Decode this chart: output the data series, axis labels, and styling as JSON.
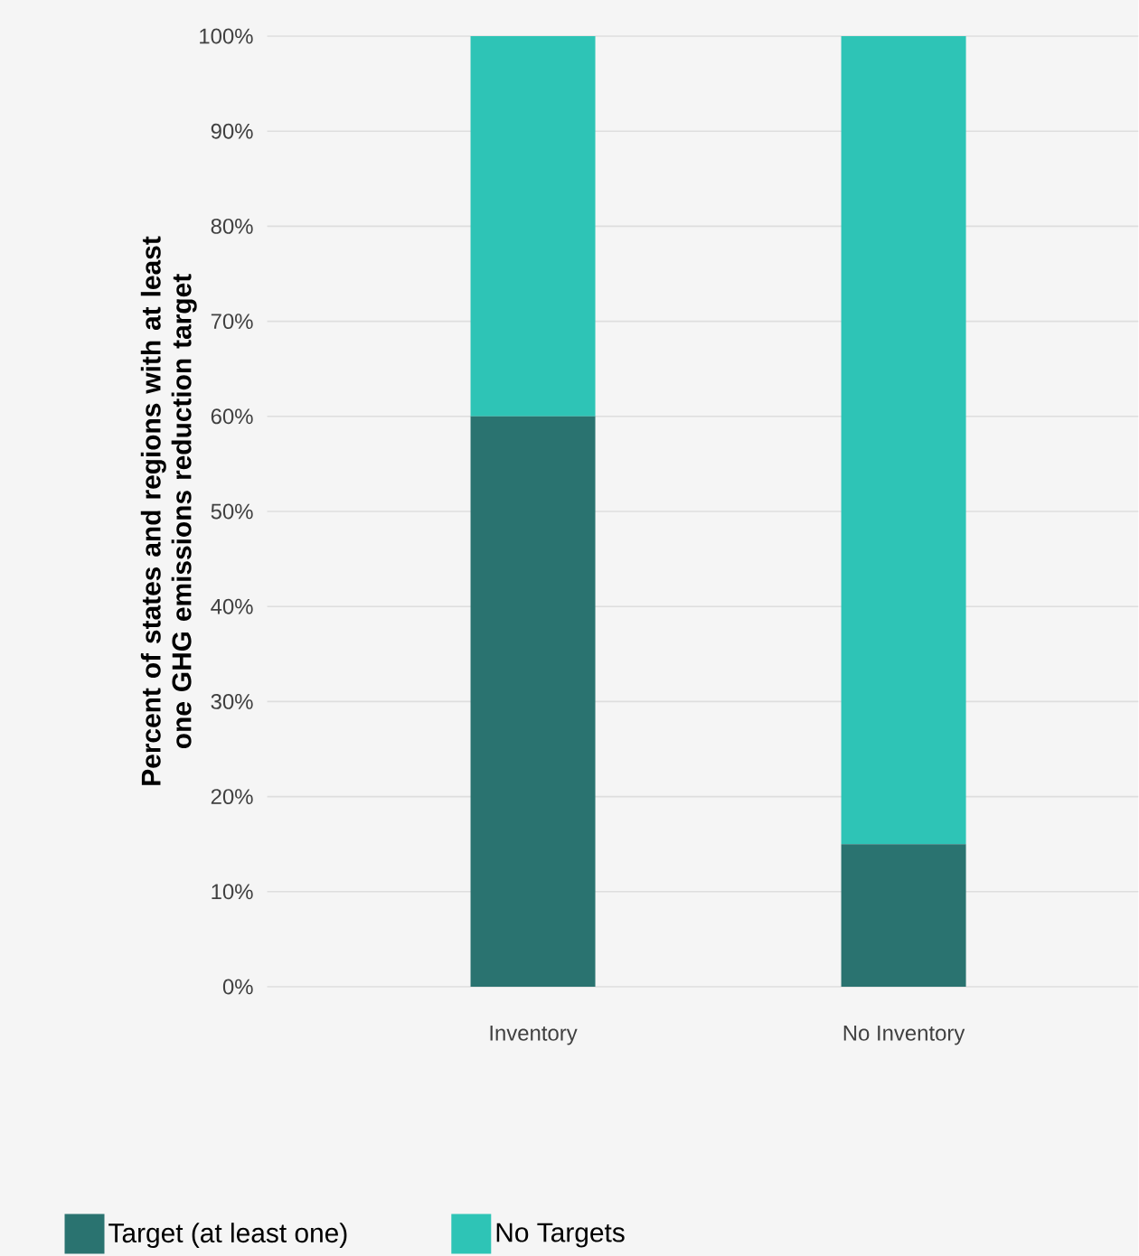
{
  "chart_data": {
    "type": "bar",
    "stacked": true,
    "ylabel": "Percent of states and regions with at least one GHG emissions reduction target",
    "categories": [
      "Inventory",
      "No Inventory"
    ],
    "series": [
      {
        "name": "Target (at least one)",
        "color": "#2a7370",
        "values": [
          60,
          15
        ]
      },
      {
        "name": "No Targets",
        "color": "#2ec4b6",
        "values": [
          40,
          85
        ]
      }
    ],
    "ylim": [
      0,
      100
    ],
    "yticks": [
      {
        "value": 0,
        "label": "0%"
      },
      {
        "value": 10,
        "label": "10%"
      },
      {
        "value": 20,
        "label": "20%"
      },
      {
        "value": 30,
        "label": "30%"
      },
      {
        "value": 40,
        "label": "40%"
      },
      {
        "value": 50,
        "label": "50%"
      },
      {
        "value": 60,
        "label": "60%"
      },
      {
        "value": 70,
        "label": "70%"
      },
      {
        "value": 80,
        "label": "80%"
      },
      {
        "value": 90,
        "label": "90%"
      },
      {
        "value": 100,
        "label": "100%"
      }
    ],
    "grid": "y",
    "legend": "bottom"
  }
}
